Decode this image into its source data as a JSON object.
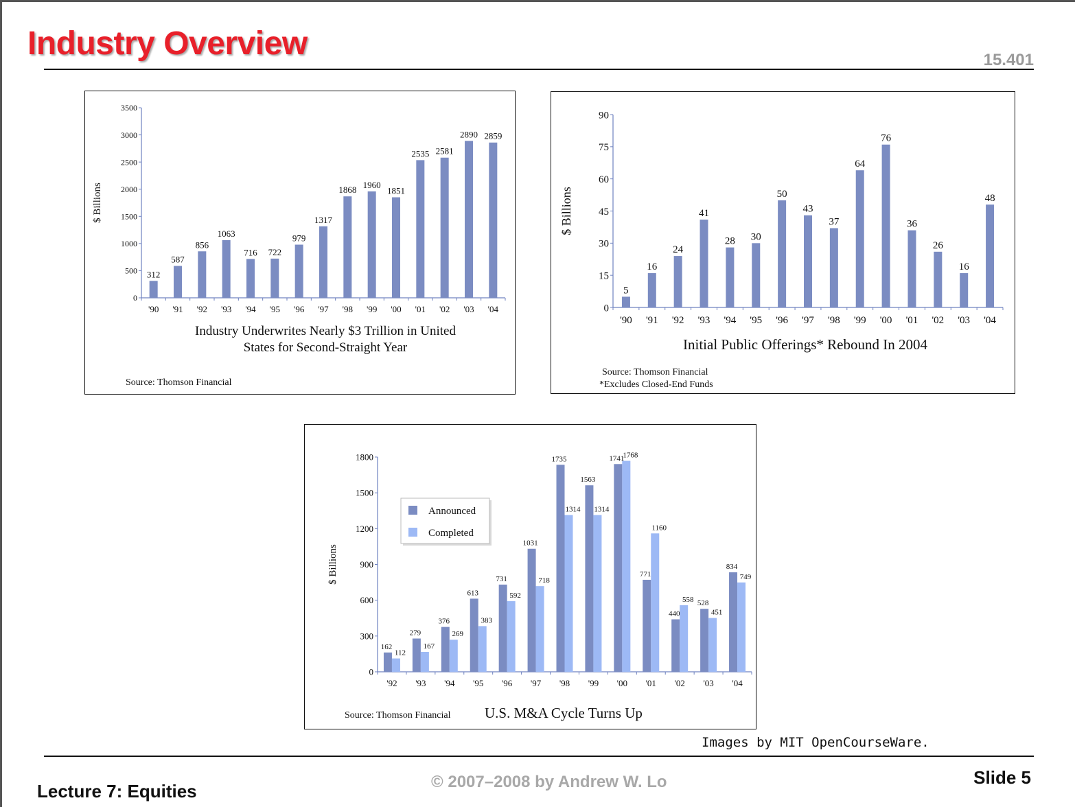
{
  "header": {
    "title": "Industry Overview",
    "course": "15.401"
  },
  "charts": {
    "underwriting": {
      "ylabel": "$ Billions",
      "title_line1": "Industry Underwrites Nearly $3 Trillion in United",
      "title_line2": "States for Second-Straight Year",
      "source": "Source: Thomson Financial"
    },
    "ipo": {
      "ylabel": "$ Billions",
      "title": "Initial Public Offerings* Rebound In 2004",
      "source": "Source: Thomson Financial",
      "footnote": "*Excludes Closed-End Funds"
    },
    "ma": {
      "ylabel": "$ Billions",
      "title": "U.S. M&A Cycle Turns Up",
      "source": "Source: Thomson Financial"
    }
  },
  "footer": {
    "credit": "Images by MIT OpenCourseWare.",
    "lecture": "Lecture 7: Equities",
    "copyright": "© 2007–2008 by Andrew W. Lo",
    "slide": "Slide 5"
  },
  "colors": {
    "title_red": "#e8202a",
    "bar_dark": "#7b8cc2",
    "bar_light": "#9db9f5"
  },
  "chart_data": [
    {
      "type": "bar",
      "title": "Industry Underwrites Nearly $3 Trillion in United States for Second-Straight Year",
      "ylabel": "$ Billions",
      "categories": [
        "'90",
        "'91",
        "'92",
        "'93",
        "'94",
        "'95",
        "'96",
        "'97",
        "'98",
        "'99",
        "'00",
        "'01",
        "'02",
        "'03",
        "'04"
      ],
      "values": [
        312,
        587,
        856,
        1063,
        716,
        722,
        979,
        1317,
        1868,
        1960,
        1851,
        2535,
        2581,
        2890,
        2859
      ],
      "ylim": [
        0,
        3500
      ],
      "yticks": [
        0,
        500,
        1000,
        1500,
        2000,
        2500,
        3000,
        3500
      ]
    },
    {
      "type": "bar",
      "title": "Initial Public Offerings* Rebound In 2004",
      "ylabel": "$ Billions",
      "categories": [
        "'90",
        "'91",
        "'92",
        "'93",
        "'94",
        "'95",
        "'96",
        "'97",
        "'98",
        "'99",
        "'00",
        "'01",
        "'02",
        "'03",
        "'04"
      ],
      "values": [
        5,
        16,
        24,
        41,
        28,
        30,
        50,
        43,
        37,
        64,
        76,
        36,
        26,
        16,
        48
      ],
      "ylim": [
        0,
        90
      ],
      "yticks": [
        0,
        15,
        30,
        45,
        60,
        75,
        90
      ]
    },
    {
      "type": "bar",
      "title": "U.S. M&A Cycle Turns Up",
      "ylabel": "$ Billions",
      "categories": [
        "'92",
        "'93",
        "'94",
        "'95",
        "'96",
        "'97",
        "'98",
        "'99",
        "'00",
        "'01",
        "'02",
        "'03",
        "'04"
      ],
      "series": [
        {
          "name": "Announced",
          "values": [
            162,
            279,
            376,
            613,
            731,
            1031,
            1735,
            1563,
            1741,
            771,
            440,
            528,
            834
          ]
        },
        {
          "name": "Completed",
          "values": [
            112,
            167,
            269,
            383,
            592,
            718,
            1314,
            1314,
            1768,
            1160,
            558,
            451,
            749
          ]
        }
      ],
      "ylim": [
        0,
        1800
      ],
      "yticks": [
        0,
        300,
        600,
        900,
        1200,
        1500,
        1800
      ],
      "legend": "top-left"
    }
  ]
}
